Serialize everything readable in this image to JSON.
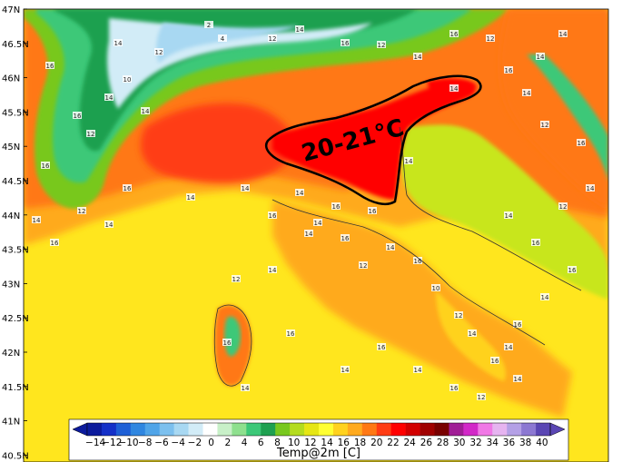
{
  "map": {
    "lat_labels": [
      "47N",
      "46.5N",
      "46N",
      "45.5N",
      "45N",
      "44.5N",
      "44N",
      "43.5N",
      "43N",
      "42.5N",
      "42N",
      "41.5N",
      "41N",
      "40.5N"
    ],
    "annotation": "20-21°C"
  },
  "colorbar": {
    "title": "Temp@2m [C]",
    "ticks": [
      "−14",
      "−12",
      "−10",
      "−8",
      "−6",
      "−4",
      "−2",
      "0",
      "2",
      "4",
      "6",
      "8",
      "10",
      "12",
      "14",
      "16",
      "18",
      "20",
      "22",
      "24",
      "26",
      "28",
      "30",
      "32",
      "34",
      "36",
      "38",
      "40"
    ],
    "colors": [
      "#0b1a9c",
      "#1430c8",
      "#1e5fd6",
      "#2f86e0",
      "#4fa4e8",
      "#7cc0ee",
      "#a8d8f2",
      "#d2ecf7",
      "#ffffff",
      "#c8f0c8",
      "#8ee08e",
      "#3cc878",
      "#1ea050",
      "#78c81e",
      "#b4dc1e",
      "#e6e614",
      "#ffff32",
      "#ffd21e",
      "#ffaa1e",
      "#ff7814",
      "#ff3c14",
      "#ff0000",
      "#d20000",
      "#a00000",
      "#780000",
      "#a01e96",
      "#d228c8",
      "#f078e6",
      "#e6b4f0",
      "#b4a0e6",
      "#8c78d2",
      "#5a46b4"
    ]
  },
  "field_labels": [
    "14",
    "16",
    "12",
    "14",
    "16",
    "10",
    "12",
    "14",
    "2",
    "4",
    "12",
    "14",
    "16",
    "12",
    "14",
    "16",
    "12",
    "14",
    "14",
    "16",
    "14",
    "16",
    "12",
    "14",
    "16",
    "14",
    "14",
    "16",
    "14",
    "14",
    "16",
    "12",
    "14",
    "16",
    "10",
    "12",
    "14",
    "16",
    "14",
    "16",
    "14",
    "16",
    "14",
    "16",
    "12",
    "14",
    "16",
    "12",
    "14",
    "16",
    "14",
    "14",
    "16",
    "16",
    "14",
    "14",
    "12",
    "16",
    "14",
    "16",
    "14",
    "16",
    "14",
    "16",
    "12",
    "14"
  ]
}
